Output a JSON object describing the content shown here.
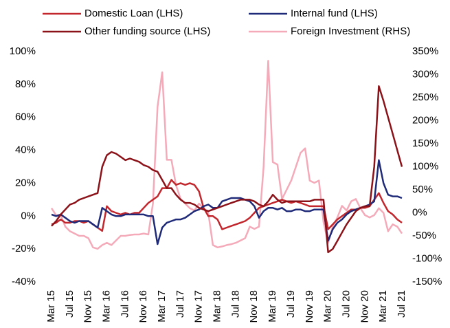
{
  "chart_data": {
    "type": "line",
    "categories": [
      "Mar 15",
      null,
      null,
      null,
      "Jul 15",
      null,
      null,
      null,
      "Nov 15",
      null,
      null,
      null,
      "Mar 16",
      null,
      null,
      null,
      "Jul 16",
      null,
      null,
      null,
      "Nov 16",
      null,
      null,
      null,
      "Mar 17",
      null,
      null,
      null,
      "Jul 17",
      null,
      null,
      null,
      "Nov 17",
      null,
      null,
      null,
      "Mar 18",
      null,
      null,
      null,
      "Jul 18",
      null,
      null,
      null,
      "Nov 18",
      null,
      null,
      null,
      "Mar 19",
      null,
      null,
      null,
      "Jul 19",
      null,
      null,
      null,
      "Nov 19",
      null,
      null,
      null,
      "Mar 20",
      null,
      null,
      null,
      "Jul 20",
      null,
      null,
      null,
      "Nov 20",
      null,
      null,
      null,
      "Mar 21",
      null,
      null,
      null,
      "Jul 21"
    ],
    "series": [
      {
        "name": "Domestic Loan (LHS)",
        "color": "#c1272d",
        "axis": "y",
        "values": [
          -5,
          -4,
          -2,
          -4,
          -4,
          -3,
          -3,
          -4,
          -3,
          -5,
          -7,
          -9,
          6,
          3,
          2,
          1,
          2,
          1,
          2,
          2,
          5,
          8,
          10,
          12,
          17,
          17,
          22,
          19,
          20,
          19,
          20,
          19,
          15,
          5,
          0,
          0,
          -2,
          -8,
          -7,
          -6,
          -5,
          -4,
          -3,
          -1,
          2,
          5,
          6,
          7,
          8,
          9,
          10,
          9,
          8,
          9,
          8,
          7,
          6,
          6,
          6,
          6,
          -8,
          -5,
          -2,
          0,
          2,
          4,
          4,
          5,
          5,
          6,
          10,
          14,
          8,
          3,
          1,
          -2,
          -4
        ]
      },
      {
        "name": "Internal fund (LHS)",
        "color": "#1f2a78",
        "axis": "y",
        "values": [
          1,
          0,
          1,
          -1,
          -3,
          -4,
          -3,
          -3,
          -3,
          -5,
          -7,
          5,
          3,
          1,
          0,
          0,
          1,
          1,
          1,
          1,
          1,
          0,
          0,
          -17,
          -7,
          -4,
          -3,
          -2,
          -2,
          -1,
          1,
          3,
          4,
          6,
          7,
          5,
          5,
          9,
          10,
          11,
          11,
          11,
          10,
          9,
          6,
          -1,
          3,
          5,
          5,
          4,
          5,
          3,
          3,
          4,
          4,
          3,
          3,
          4,
          4,
          4,
          -15,
          -8,
          -4,
          -2,
          1,
          3,
          4,
          5,
          6,
          7,
          9,
          34,
          20,
          13,
          12,
          12,
          11
        ]
      },
      {
        "name": "Other funding source (LHS)",
        "color": "#8b1218",
        "axis": "y",
        "values": [
          -6,
          -3,
          1,
          4,
          7,
          8,
          10,
          11,
          12,
          13,
          14,
          30,
          37,
          39,
          38,
          36,
          34,
          35,
          34,
          33,
          31,
          30,
          28,
          27,
          22,
          17,
          17,
          13,
          10,
          8,
          8,
          7,
          5,
          4,
          3,
          4,
          5,
          6,
          7,
          8,
          9,
          10,
          10,
          10,
          9,
          7,
          6,
          9,
          13,
          10,
          8,
          9,
          9,
          9,
          9,
          9,
          9,
          10,
          10,
          10,
          -22,
          -20,
          -15,
          -10,
          -5,
          -1,
          3,
          5,
          6,
          6,
          30,
          79,
          70,
          60,
          50,
          40,
          30
        ]
      },
      {
        "name": "Foreign Investment (RHS)",
        "color": "#f4aab9",
        "axis": "y2",
        "values": [
          10,
          -5,
          -5,
          -30,
          -40,
          -45,
          -50,
          -50,
          -55,
          -75,
          -78,
          -70,
          -65,
          -70,
          -60,
          -50,
          -50,
          -48,
          -47,
          -47,
          -45,
          -47,
          20,
          230,
          305,
          115,
          115,
          60,
          30,
          20,
          10,
          5,
          20,
          10,
          0,
          -70,
          -75,
          -73,
          -70,
          -68,
          -65,
          -60,
          -55,
          -30,
          -35,
          -30,
          100,
          330,
          110,
          105,
          30,
          50,
          70,
          100,
          130,
          140,
          70,
          65,
          70,
          -20,
          -65,
          -30,
          -10,
          15,
          5,
          25,
          30,
          10,
          -5,
          -10,
          -5,
          10,
          0,
          -40,
          -25,
          -30,
          -45
        ]
      }
    ],
    "ylim": [
      -40,
      100
    ],
    "yticks": [
      {
        "value": -40,
        "label": "-40%"
      },
      {
        "value": -20,
        "label": "-20%"
      },
      {
        "value": 0,
        "label": "0%"
      },
      {
        "value": 20,
        "label": "20%"
      },
      {
        "value": 40,
        "label": "40%"
      },
      {
        "value": 60,
        "label": "60%"
      },
      {
        "value": 80,
        "label": "80%"
      },
      {
        "value": 100,
        "label": "100%"
      }
    ],
    "y2lim": [
      -150,
      350
    ],
    "y2ticks": [
      {
        "value": -150,
        "label": "-150%"
      },
      {
        "value": -100,
        "label": "-100%"
      },
      {
        "value": -50,
        "label": "-50%"
      },
      {
        "value": 0,
        "label": "0%"
      },
      {
        "value": 50,
        "label": "50%"
      },
      {
        "value": 100,
        "label": "100%"
      },
      {
        "value": 150,
        "label": "150%"
      },
      {
        "value": 200,
        "label": "200%"
      },
      {
        "value": 250,
        "label": "250%"
      },
      {
        "value": 300,
        "label": "300%"
      },
      {
        "value": 350,
        "label": "350%"
      }
    ],
    "legend": "top"
  }
}
